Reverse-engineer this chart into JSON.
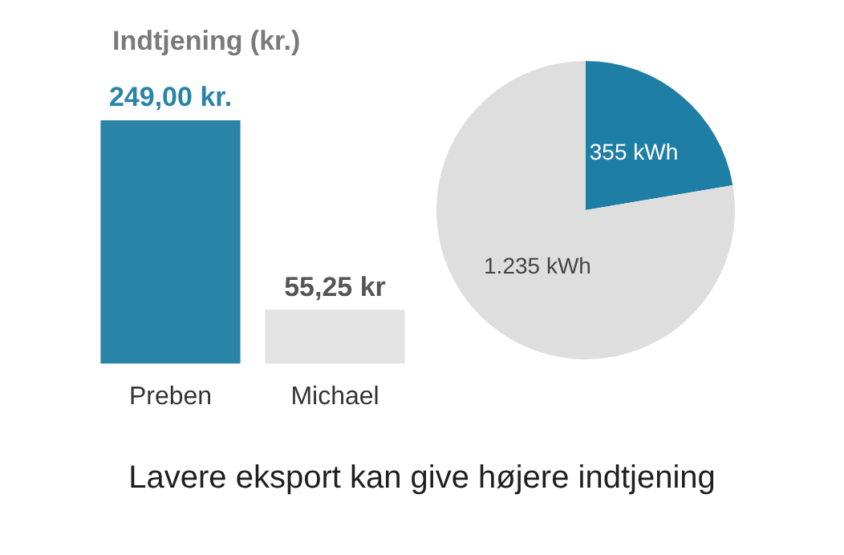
{
  "chart_data": [
    {
      "type": "bar",
      "title": "Indtjening (kr.)",
      "categories": [
        "Preben",
        "Michael"
      ],
      "values": [
        249.0,
        55.25
      ],
      "colors": [
        "#2a84a8",
        "#e3e3e3"
      ],
      "value_labels": [
        "249,00 kr.",
        "55,25 kr"
      ],
      "tick_labels": "x",
      "annotations": [
        "Lavere eksport kan give højere indtjening"
      ]
    },
    {
      "type": "pie",
      "categories": [
        null,
        null
      ],
      "values": [
        355,
        1235
      ],
      "colors": [
        "#1f7ea6",
        "#dedede"
      ],
      "value_labels": [
        "355 kWh",
        "1.235 kWh"
      ]
    }
  ]
}
